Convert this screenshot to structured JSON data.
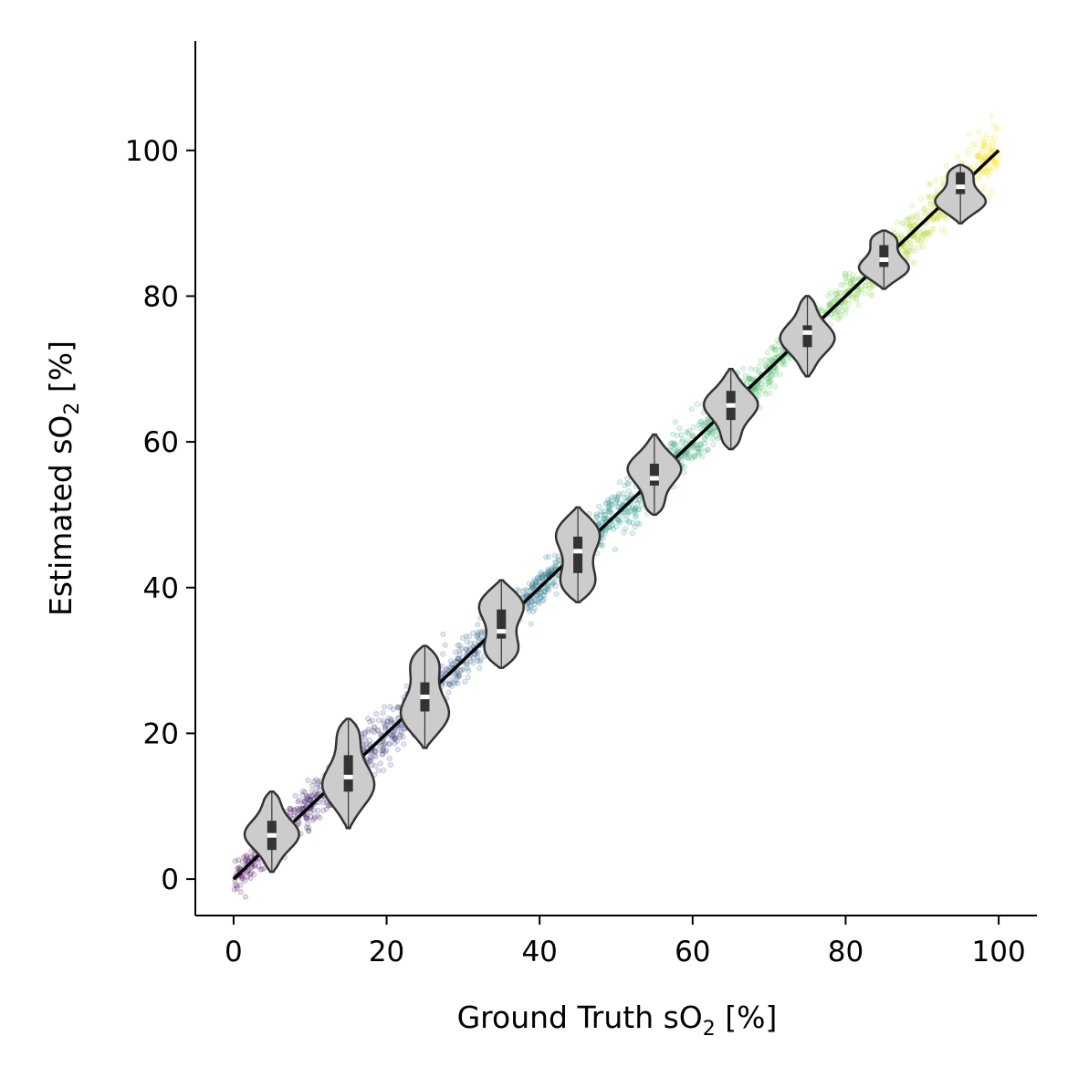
{
  "chart_data": {
    "type": "scatter",
    "title": "",
    "xlabel": {
      "before": "Ground Truth sO",
      "subscript": "2",
      "after": " [%]"
    },
    "ylabel": {
      "before": "Estimated sO",
      "subscript": "2",
      "after": " [%]"
    },
    "xlim": [
      -5,
      105
    ],
    "ylim": [
      -5,
      115
    ],
    "xticks": [
      0,
      20,
      40,
      60,
      80,
      100
    ],
    "yticks": [
      0,
      20,
      40,
      60,
      80,
      100
    ],
    "xtick_labels": [
      "0",
      "20",
      "40",
      "60",
      "80",
      "100"
    ],
    "ytick_labels": [
      "0",
      "20",
      "40",
      "60",
      "80",
      "100"
    ],
    "grid": false,
    "colormap": [
      "#440154",
      "#3b528b",
      "#21918c",
      "#5ec962",
      "#fde725"
    ],
    "identity_line": {
      "from": [
        0,
        0
      ],
      "to": [
        100,
        100
      ],
      "color": "#000000"
    },
    "scatter": {
      "x_range": [
        0,
        100
      ],
      "noise_sd": 2.0,
      "alpha": 0.15
    },
    "violins": [
      {
        "x": 5,
        "median": 6,
        "q1": 4,
        "q3": 8,
        "min": 1,
        "max": 12
      },
      {
        "x": 15,
        "median": 14,
        "q1": 12,
        "q3": 17,
        "min": 7,
        "max": 22
      },
      {
        "x": 25,
        "median": 25,
        "q1": 23,
        "q3": 27,
        "min": 18,
        "max": 32
      },
      {
        "x": 35,
        "median": 34,
        "q1": 33,
        "q3": 37,
        "min": 29,
        "max": 41
      },
      {
        "x": 45,
        "median": 45,
        "q1": 42,
        "q3": 47,
        "min": 38,
        "max": 51
      },
      {
        "x": 55,
        "median": 55,
        "q1": 54,
        "q3": 57,
        "min": 50,
        "max": 61
      },
      {
        "x": 65,
        "median": 65,
        "q1": 63,
        "q3": 67,
        "min": 59,
        "max": 70
      },
      {
        "x": 75,
        "median": 75,
        "q1": 73,
        "q3": 76,
        "min": 69,
        "max": 80
      },
      {
        "x": 85,
        "median": 85,
        "q1": 84,
        "q3": 87,
        "min": 81,
        "max": 89
      },
      {
        "x": 95,
        "median": 95,
        "q1": 94,
        "q3": 97,
        "min": 90,
        "max": 98
      }
    ],
    "violin_fill": "#cccccc",
    "violin_edge": "#333333"
  }
}
